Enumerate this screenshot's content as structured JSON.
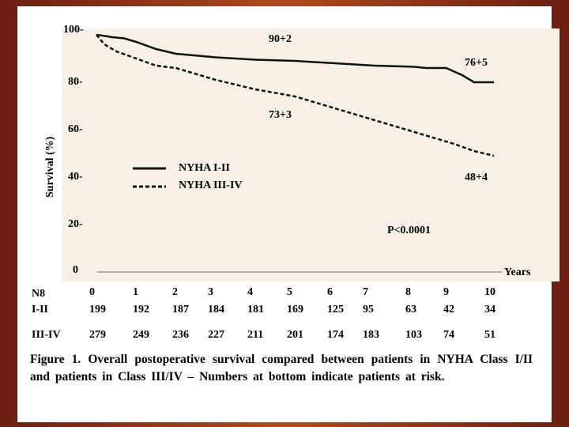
{
  "chart_data": {
    "type": "line",
    "ylabel": "Survival (%)",
    "xlabel": "Years",
    "x_ticks": [
      0,
      1,
      2,
      3,
      4,
      5,
      6,
      7,
      8,
      9,
      10
    ],
    "y_ticks": [
      {
        "value": 0,
        "label": "0"
      },
      {
        "value": 20,
        "label": "20-"
      },
      {
        "value": 40,
        "label": "40-"
      },
      {
        "value": 60,
        "label": "60-"
      },
      {
        "value": 80,
        "label": "80-"
      },
      {
        "value": 100,
        "label": "100-"
      }
    ],
    "ylim": [
      0,
      100
    ],
    "xlim": [
      0,
      10
    ],
    "series": [
      {
        "name": "NYHA I-II",
        "style": "solid",
        "x": [
          0,
          0.1,
          0.4,
          0.7,
          1.0,
          1.5,
          2.0,
          3.0,
          4.0,
          5.0,
          6.0,
          7.0,
          8.0,
          8.3,
          8.8,
          9.2,
          9.5,
          9.8,
          10.0
        ],
        "y": [
          100,
          99.8,
          99,
          98.5,
          97,
          94,
          92,
          90.5,
          89.5,
          89,
          88,
          87,
          86.5,
          86,
          86,
          83,
          80,
          80,
          80
        ]
      },
      {
        "name": "NYHA III-IV",
        "style": "dashed",
        "x": [
          0,
          0.2,
          0.5,
          1.0,
          1.5,
          2.0,
          3.0,
          4.0,
          5.0,
          6.0,
          7.0,
          8.0,
          9.0,
          9.5,
          10.0
        ],
        "y": [
          100,
          96,
          93,
          90,
          87,
          86,
          81,
          77,
          74,
          69,
          64,
          59,
          54,
          51,
          49
        ]
      }
    ],
    "annotations": [
      {
        "text": "90+2"
      },
      {
        "text": "76+5"
      },
      {
        "text": "73+3"
      },
      {
        "text": "48+4"
      },
      {
        "text": "P<0.0001"
      }
    ],
    "risk_table": {
      "header": "N8",
      "years_row": [
        "0",
        "1",
        "2",
        "3",
        "4",
        "5",
        "6",
        "7",
        "8",
        "9",
        "10"
      ],
      "rows": [
        {
          "label": "I-II",
          "values": [
            "199",
            "192",
            "187",
            "184",
            "181",
            "169",
            "125",
            "95",
            "63",
            "42",
            "34"
          ]
        },
        {
          "label": "III-IV",
          "values": [
            "279",
            "249",
            "236",
            "227",
            "211",
            "201",
            "174",
            "183",
            "103",
            "74",
            "51"
          ]
        }
      ]
    }
  },
  "caption": "Figure 1.  Overall postoperative survival compared between patients in NYHA Class I/II and patients in Class III/IV – Numbers at bottom indicate patients at risk."
}
